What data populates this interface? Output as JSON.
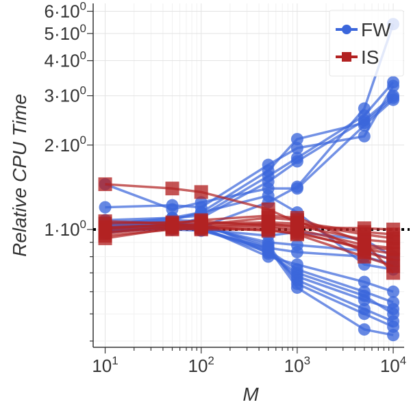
{
  "chart_data": {
    "type": "line",
    "title": "",
    "xlabel": "M",
    "ylabel": "Relative CPU Time",
    "x_scale": "log",
    "y_scale": "log",
    "xlim": [
      7.5,
      13000
    ],
    "ylim": [
      0.38,
      6.4
    ],
    "x_ticks": [
      {
        "value": 10,
        "base": "10",
        "exp": "1"
      },
      {
        "value": 100,
        "base": "10",
        "exp": "2"
      },
      {
        "value": 1000,
        "base": "10",
        "exp": "3"
      },
      {
        "value": 10000,
        "base": "10",
        "exp": "4"
      }
    ],
    "y_ticks": [
      {
        "value": 1,
        "base": "1·10",
        "exp": "0"
      },
      {
        "value": 2,
        "base": "2·10",
        "exp": "0"
      },
      {
        "value": 3,
        "base": "3·10",
        "exp": "0"
      },
      {
        "value": 4,
        "base": "4·10",
        "exp": "0"
      },
      {
        "value": 5,
        "base": "5·10",
        "exp": "0"
      },
      {
        "value": 6,
        "base": "6·10",
        "exp": "0"
      }
    ],
    "reference_line": {
      "y": 1.0,
      "style": "dotted",
      "color": "#000000"
    },
    "legend": {
      "position": "top-right",
      "entries": [
        {
          "label": "FW",
          "color": "#3b66db",
          "marker": "circle"
        },
        {
          "label": "IS",
          "color": "#b22222",
          "marker": "square"
        }
      ]
    },
    "x": [
      10,
      50,
      100,
      500,
      1000,
      5000,
      10000
    ],
    "series": [
      {
        "name": "FW",
        "group": "FW",
        "values": [
          1.0,
          1.06,
          1.02,
          1.25,
          1.42,
          2.7,
          5.4
        ]
      },
      {
        "name": "FW",
        "group": "FW",
        "values": [
          1.04,
          1.1,
          1.12,
          1.55,
          1.8,
          2.55,
          3.35
        ]
      },
      {
        "name": "FW",
        "group": "FW",
        "values": [
          0.98,
          1.03,
          1.1,
          1.48,
          1.75,
          2.45,
          3.0
        ]
      },
      {
        "name": "FW",
        "group": "FW",
        "values": [
          1.02,
          1.08,
          1.15,
          1.62,
          2.1,
          2.4,
          2.95
        ]
      },
      {
        "name": "FW",
        "group": "FW",
        "values": [
          1.2,
          1.22,
          1.2,
          1.7,
          1.95,
          2.15,
          3.25
        ]
      },
      {
        "name": "FW",
        "group": "FW",
        "values": [
          1.45,
          1.18,
          1.25,
          1.4,
          1.4,
          2.35,
          2.9
        ]
      },
      {
        "name": "FW",
        "group": "FW",
        "values": [
          1.0,
          1.01,
          1.0,
          0.95,
          0.98,
          0.92,
          0.8
        ]
      },
      {
        "name": "FW",
        "group": "FW",
        "values": [
          0.97,
          1.04,
          1.02,
          0.9,
          0.88,
          0.84,
          0.78
        ]
      },
      {
        "name": "FW",
        "group": "FW",
        "values": [
          1.05,
          1.06,
          1.04,
          0.86,
          0.83,
          0.8,
          0.75
        ]
      },
      {
        "name": "FW",
        "group": "FW",
        "values": [
          1.08,
          1.1,
          1.15,
          1.32,
          1.15,
          0.75,
          0.72
        ]
      },
      {
        "name": "FW",
        "group": "FW",
        "values": [
          1.03,
          1.05,
          1.02,
          0.8,
          0.75,
          0.65,
          0.6
        ]
      },
      {
        "name": "FW",
        "group": "FW",
        "values": [
          0.99,
          1.02,
          1.01,
          0.84,
          0.72,
          0.6,
          0.55
        ]
      },
      {
        "name": "FW",
        "group": "FW",
        "values": [
          1.06,
          1.08,
          1.07,
          0.82,
          0.7,
          0.58,
          0.5
        ]
      },
      {
        "name": "FW",
        "group": "FW",
        "values": [
          1.0,
          1.03,
          1.0,
          0.85,
          0.66,
          0.52,
          0.47
        ]
      },
      {
        "name": "FW",
        "group": "FW",
        "values": [
          1.02,
          1.04,
          1.03,
          0.88,
          0.64,
          0.5,
          0.45
        ]
      },
      {
        "name": "FW",
        "group": "FW",
        "values": [
          1.01,
          1.0,
          0.99,
          0.86,
          0.62,
          0.44,
          0.42
        ]
      },
      {
        "name": "FW",
        "group": "FW",
        "values": [
          0.98,
          1.01,
          1.0,
          0.83,
          0.68,
          0.56,
          0.52
        ]
      },
      {
        "name": "IS",
        "group": "IS",
        "values": [
          1.45,
          1.4,
          1.36,
          1.18,
          1.06,
          0.98,
          0.96
        ]
      },
      {
        "name": "IS",
        "group": "IS",
        "values": [
          1.02,
          1.04,
          1.05,
          1.06,
          1.05,
          0.96,
          0.93
        ]
      },
      {
        "name": "IS",
        "group": "IS",
        "values": [
          0.98,
          1.02,
          1.02,
          1.04,
          1.03,
          0.92,
          0.9
        ]
      },
      {
        "name": "IS",
        "group": "IS",
        "values": [
          1.05,
          1.06,
          1.07,
          1.03,
          1.0,
          0.88,
          0.86
        ]
      },
      {
        "name": "IS",
        "group": "IS",
        "values": [
          0.95,
          1.0,
          1.01,
          1.02,
          0.98,
          0.85,
          0.82
        ]
      },
      {
        "name": "IS",
        "group": "IS",
        "values": [
          1.0,
          1.03,
          1.04,
          1.1,
          1.08,
          0.83,
          0.78
        ]
      },
      {
        "name": "IS",
        "group": "IS",
        "values": [
          0.93,
          1.01,
          1.0,
          1.0,
          0.96,
          0.8,
          0.74
        ]
      },
      {
        "name": "IS",
        "group": "IS",
        "values": [
          1.07,
          1.05,
          1.08,
          1.12,
          1.1,
          0.9,
          0.7
        ]
      },
      {
        "name": "IS",
        "group": "IS",
        "values": [
          1.01,
          1.04,
          1.03,
          1.05,
          1.02,
          1.01,
          1.0
        ]
      },
      {
        "name": "IS",
        "group": "IS",
        "values": [
          0.97,
          1.02,
          1.02,
          0.99,
          0.97,
          0.86,
          0.85
        ]
      }
    ]
  }
}
